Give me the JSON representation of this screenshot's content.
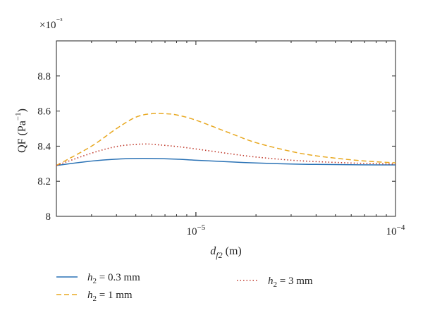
{
  "chart_data": {
    "type": "line",
    "x_scale": "log",
    "xlim": [
      2e-06,
      0.0001
    ],
    "ylim": [
      8.0,
      9.0
    ],
    "y_multiplier_label": "×10⁻³",
    "xlabel": {
      "main": "d",
      "sub": "f2",
      "unit": " (m)"
    },
    "ylabel": {
      "main": "QF (Pa",
      "sup": "−1",
      "close": ")"
    },
    "x_ticks": [
      {
        "value": 1e-05,
        "base": "10",
        "exp": "−5"
      },
      {
        "value": 0.0001,
        "base": "10",
        "exp": "−4"
      }
    ],
    "y_ticks": [
      {
        "value": 8.0,
        "label": "8"
      },
      {
        "value": 8.2,
        "label": "8.2"
      },
      {
        "value": 8.4,
        "label": "8.4"
      },
      {
        "value": 8.6,
        "label": "8.6"
      },
      {
        "value": 8.8,
        "label": "8.8"
      }
    ],
    "grid": false,
    "legend_position": "bottom",
    "series": [
      {
        "name": {
          "main": "h",
          "sub": "2",
          "rest": " = 0.3 mm"
        },
        "color": "#2a72b5",
        "dash": "solid",
        "x": [
          2e-06,
          3e-06,
          4e-06,
          5e-06,
          6e-06,
          8e-06,
          1e-05,
          1.5e-05,
          2e-05,
          3e-05,
          4e-05,
          6e-05,
          8e-05,
          0.0001
        ],
        "y": [
          8.29,
          8.315,
          8.326,
          8.33,
          8.33,
          8.326,
          8.32,
          8.31,
          8.304,
          8.298,
          8.296,
          8.294,
          8.293,
          8.293
        ]
      },
      {
        "name": {
          "main": "h",
          "sub": "2",
          "rest": " = 1 mm"
        },
        "color": "#e8a820",
        "dash": "dashed",
        "x": [
          2e-06,
          3e-06,
          4e-06,
          5e-06,
          6e-06,
          7e-06,
          8e-06,
          1e-05,
          1.5e-05,
          2e-05,
          3e-05,
          4e-05,
          6e-05,
          8e-05,
          0.0001
        ],
        "y": [
          8.29,
          8.4,
          8.5,
          8.565,
          8.585,
          8.585,
          8.578,
          8.548,
          8.472,
          8.42,
          8.37,
          8.345,
          8.322,
          8.311,
          8.305
        ]
      },
      {
        "name": {
          "main": "h",
          "sub": "2",
          "rest": " = 3 mm"
        },
        "color": "#c0392b",
        "dash": "dotted",
        "x": [
          2e-06,
          3e-06,
          4e-06,
          5e-06,
          5.5e-06,
          6e-06,
          8e-06,
          1e-05,
          1.5e-05,
          2e-05,
          3e-05,
          4e-05,
          6e-05,
          8e-05,
          0.0001
        ],
        "y": [
          8.29,
          8.36,
          8.398,
          8.41,
          8.412,
          8.411,
          8.398,
          8.384,
          8.356,
          8.338,
          8.32,
          8.312,
          8.304,
          8.3,
          8.298
        ]
      }
    ]
  }
}
